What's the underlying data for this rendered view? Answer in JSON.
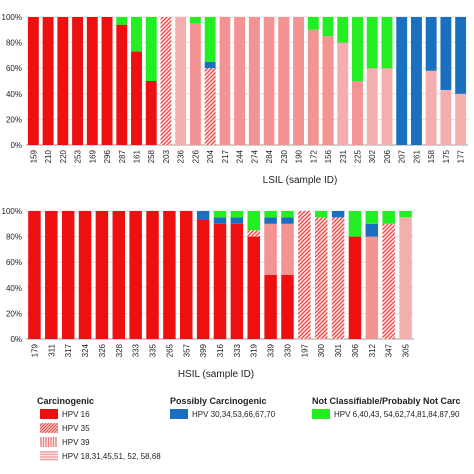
{
  "colors": {
    "hpv16": "#ee1010",
    "hpv35": "#ee5555",
    "hpv39": "#f07878",
    "hpv18etc": "#f39a9a",
    "possibly": "#1a6fc0",
    "notclass": "#22ee22"
  },
  "legend": {
    "carcinogenic_title": "Carcinogenic",
    "possibly_title": "Possibly Carcinogenic",
    "notclass_title": "Not Classifiable/Probably Not Carc",
    "items": [
      {
        "key": "hpv16",
        "label": "HPV 16",
        "pattern": "solid"
      },
      {
        "key": "hpv35",
        "label": "HPV 35",
        "pattern": "diagonal"
      },
      {
        "key": "hpv39",
        "label": "HPV 39",
        "pattern": "vertical"
      },
      {
        "key": "hpv18etc",
        "label": "HPV 18,31,45,51, 52, 58,68",
        "pattern": "horizontal"
      },
      {
        "key": "possibly",
        "label": "HPV 30,34,53,66,67,70",
        "pattern": "solid"
      },
      {
        "key": "notclass",
        "label": "HPV 6,40,43, 54,62,74,81,84,87,90",
        "pattern": "solid"
      }
    ]
  },
  "chart_data": [
    {
      "type": "bar",
      "stacked": true,
      "xlabel": "LSIL (sample ID)",
      "ylabel": "",
      "ylim": [
        0,
        100
      ],
      "yticks": [
        "0%",
        "20%",
        "40%",
        "60%",
        "80%",
        "100%"
      ],
      "ytick_values": [
        0,
        20,
        40,
        60,
        80,
        100
      ],
      "categories": [
        "159",
        "210",
        "220",
        "253",
        "169",
        "296",
        "287",
        "161",
        "258",
        "203",
        "236",
        "226",
        "204",
        "217",
        "244",
        "274",
        "284",
        "230",
        "190",
        "172",
        "156",
        "231",
        "225",
        "302",
        "206",
        "207",
        "261",
        "158",
        "175",
        "177"
      ],
      "series": [
        {
          "key": "hpv16",
          "values": [
            100,
            100,
            100,
            100,
            100,
            100,
            94,
            73,
            50,
            0,
            0,
            0,
            0,
            0,
            0,
            0,
            0,
            0,
            0,
            0,
            0,
            0,
            0,
            0,
            0,
            0,
            0,
            0,
            0,
            0
          ]
        },
        {
          "key": "hpv35",
          "values": [
            0,
            0,
            0,
            0,
            0,
            0,
            0,
            0,
            0,
            100,
            0,
            0,
            60,
            0,
            0,
            0,
            0,
            0,
            0,
            0,
            0,
            0,
            0,
            0,
            0,
            0,
            0,
            0,
            0,
            0
          ]
        },
        {
          "key": "hpv39",
          "values": [
            0,
            0,
            0,
            0,
            0,
            0,
            0,
            0,
            0,
            0,
            0,
            95,
            0,
            100,
            100,
            100,
            100,
            100,
            100,
            90,
            85,
            0,
            50,
            0,
            0,
            0,
            0,
            0,
            0,
            0
          ]
        },
        {
          "key": "hpv18etc",
          "values": [
            0,
            0,
            0,
            0,
            0,
            0,
            0,
            0,
            0,
            0,
            100,
            0,
            0,
            0,
            0,
            0,
            0,
            0,
            0,
            0,
            0,
            80,
            0,
            60,
            60,
            0,
            0,
            58,
            43,
            40
          ]
        },
        {
          "key": "possibly",
          "values": [
            0,
            0,
            0,
            0,
            0,
            0,
            0,
            0,
            0,
            0,
            0,
            0,
            5,
            0,
            0,
            0,
            0,
            0,
            0,
            0,
            0,
            0,
            0,
            0,
            0,
            100,
            100,
            42,
            57,
            60
          ]
        },
        {
          "key": "notclass",
          "values": [
            0,
            0,
            0,
            0,
            0,
            0,
            6,
            27,
            50,
            0,
            0,
            5,
            35,
            0,
            0,
            0,
            0,
            0,
            0,
            10,
            15,
            20,
            50,
            40,
            40,
            0,
            0,
            0,
            0,
            0
          ]
        }
      ]
    },
    {
      "type": "bar",
      "stacked": true,
      "xlabel": "HSIL (sample ID)",
      "ylabel": "",
      "ylim": [
        0,
        100
      ],
      "yticks": [
        "0%",
        "20%",
        "40%",
        "60%",
        "80%",
        "100%"
      ],
      "ytick_values": [
        0,
        20,
        40,
        60,
        80,
        100
      ],
      "categories": [
        "179",
        "311",
        "317",
        "324",
        "326",
        "328",
        "333",
        "335",
        "265",
        "357",
        "399",
        "316",
        "333",
        "319",
        "339",
        "330",
        "197",
        "300",
        "301",
        "306",
        "312",
        "347",
        "305"
      ],
      "series": [
        {
          "key": "hpv16",
          "values": [
            100,
            100,
            100,
            100,
            100,
            100,
            100,
            100,
            100,
            100,
            93,
            90,
            90,
            80,
            50,
            50,
            0,
            0,
            0,
            80,
            0,
            0,
            0
          ]
        },
        {
          "key": "hpv35",
          "values": [
            0,
            0,
            0,
            0,
            0,
            0,
            0,
            0,
            0,
            0,
            0,
            0,
            0,
            5,
            0,
            0,
            100,
            95,
            95,
            0,
            0,
            90,
            0
          ]
        },
        {
          "key": "hpv39",
          "values": [
            0,
            0,
            0,
            0,
            0,
            0,
            0,
            0,
            0,
            0,
            0,
            0,
            0,
            0,
            40,
            40,
            0,
            0,
            0,
            0,
            80,
            0,
            0
          ]
        },
        {
          "key": "hpv18etc",
          "values": [
            0,
            0,
            0,
            0,
            0,
            0,
            0,
            0,
            0,
            0,
            0,
            0,
            0,
            0,
            0,
            0,
            0,
            0,
            0,
            0,
            0,
            0,
            95
          ]
        },
        {
          "key": "possibly",
          "values": [
            0,
            0,
            0,
            0,
            0,
            0,
            0,
            0,
            0,
            0,
            7,
            5,
            5,
            0,
            5,
            5,
            0,
            0,
            5,
            0,
            10,
            0,
            0
          ]
        },
        {
          "key": "notclass",
          "values": [
            0,
            0,
            0,
            0,
            0,
            0,
            0,
            0,
            0,
            0,
            0,
            5,
            5,
            15,
            5,
            5,
            0,
            5,
            0,
            20,
            10,
            10,
            5
          ]
        }
      ]
    }
  ]
}
